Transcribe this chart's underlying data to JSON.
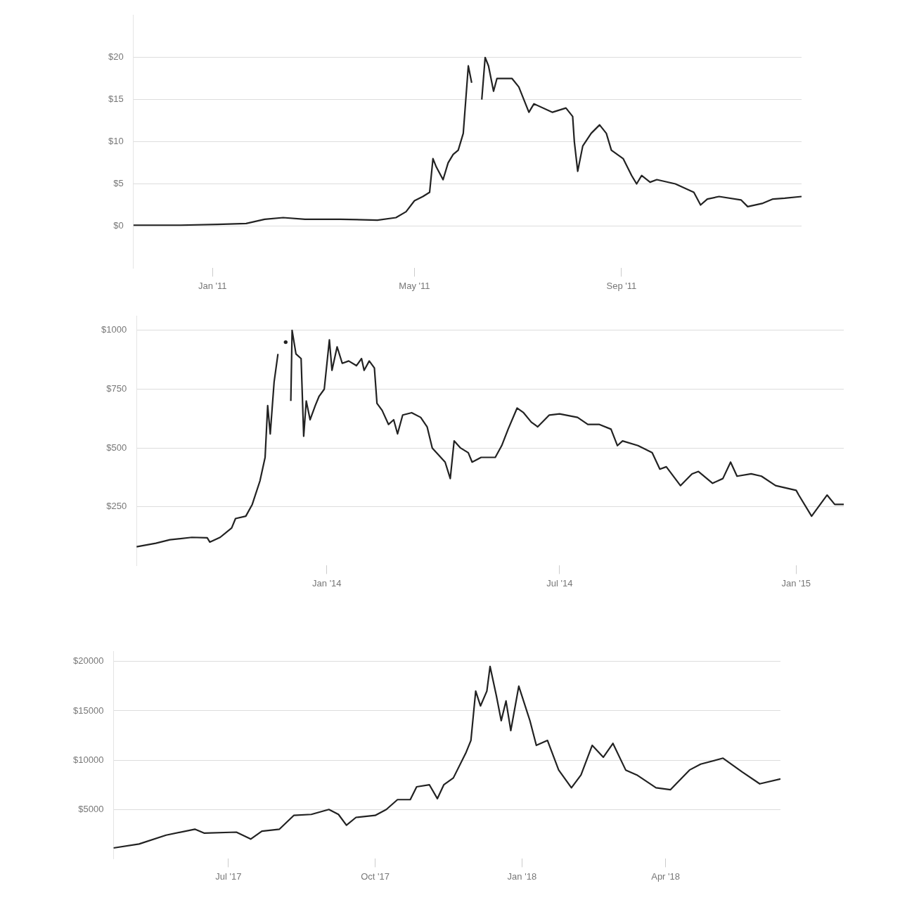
{
  "chart_data": [
    {
      "type": "line",
      "x": [
        "2010-11-15",
        "2010-12-13",
        "2011-01-04",
        "2011-01-21",
        "2011-02-01",
        "2011-02-12",
        "2011-02-25",
        "2011-03-18",
        "2011-04-09",
        "2011-04-20",
        "2011-04-26",
        "2011-05-01",
        "2011-05-06",
        "2011-05-10",
        "2011-05-12",
        "2011-05-14",
        "2011-05-18",
        "2011-05-21",
        "2011-05-24",
        "2011-05-27",
        "2011-05-30",
        "2011-06-02",
        "2011-06-04",
        "2011-06-06",
        "2011-06-08",
        "2011-06-10",
        "2011-06-12",
        "2011-06-14",
        "2011-06-17",
        "2011-06-19",
        "2011-06-28",
        "2011-07-02",
        "2011-07-05",
        "2011-07-08",
        "2011-07-11",
        "2011-07-22",
        "2011-07-30",
        "2011-08-03",
        "2011-08-04",
        "2011-08-06",
        "2011-08-09",
        "2011-08-14",
        "2011-08-19",
        "2011-08-23",
        "2011-08-26",
        "2011-09-02",
        "2011-09-07",
        "2011-09-10",
        "2011-09-13",
        "2011-09-18",
        "2011-09-22",
        "2011-10-03",
        "2011-10-14",
        "2011-10-18",
        "2011-10-22",
        "2011-10-29",
        "2011-11-11",
        "2011-11-15",
        "2011-11-24",
        "2011-11-30",
        "2011-12-07",
        "2011-12-17"
      ],
      "series": [
        {
          "color": "#222222",
          "values": [
            0.1,
            0.1,
            0.2,
            0.3,
            0.8,
            1.0,
            0.8,
            0.8,
            0.7,
            1.0,
            1.7,
            3.0,
            3.5,
            4.0,
            8.0,
            7.0,
            5.5,
            7.5,
            8.5,
            9.0,
            11,
            19,
            17,
            null,
            null,
            15,
            20,
            19,
            16,
            17.5,
            17.5,
            16.5,
            15,
            13.5,
            14.5,
            13.5,
            14,
            13,
            10,
            6.5,
            9.5,
            11,
            12,
            11,
            9,
            8,
            6,
            5,
            6,
            5.2,
            5.5,
            5,
            4,
            2.5,
            3.2,
            3.5,
            3.1,
            2.3,
            2.7,
            3.2,
            3.3,
            3.5
          ]
        }
      ],
      "xlim": [
        "2010-11-15",
        "2011-12-17"
      ],
      "ylim": [
        -5,
        25
      ],
      "xticks": [
        {
          "value": "2011-01-01",
          "label": "Jan '11"
        },
        {
          "value": "2011-05-01",
          "label": "May '11"
        },
        {
          "value": "2011-09-01",
          "label": "Sep '11"
        }
      ],
      "yticks": [
        {
          "value": 0,
          "label": "$0"
        },
        {
          "value": 5,
          "label": "$5"
        },
        {
          "value": 10,
          "label": "$10"
        },
        {
          "value": 15,
          "label": "$15"
        },
        {
          "value": 20,
          "label": "$20"
        }
      ],
      "grid": "y",
      "legend": false,
      "marker": "none",
      "line_style": "solid"
    },
    {
      "type": "line",
      "x": [
        "2013-08-06",
        "2013-08-21",
        "2013-09-01",
        "2013-09-18",
        "2013-09-30",
        "2013-10-02",
        "2013-10-10",
        "2013-10-19",
        "2013-10-22",
        "2013-10-30",
        "2013-11-04",
        "2013-11-10",
        "2013-11-14",
        "2013-11-16",
        "2013-11-18",
        "2013-11-21",
        "2013-11-24",
        "2013-11-26",
        "2013-11-28",
        "2013-11-30",
        "2013-12-01",
        "2013-12-04",
        "2013-12-05",
        "2013-12-08",
        "2013-12-12",
        "2013-12-14",
        "2013-12-16",
        "2013-12-19",
        "2013-12-23",
        "2013-12-26",
        "2013-12-30",
        "2014-01-03",
        "2014-01-05",
        "2014-01-09",
        "2014-01-13",
        "2014-01-18",
        "2014-01-24",
        "2014-01-28",
        "2014-01-30",
        "2014-02-03",
        "2014-02-07",
        "2014-02-09",
        "2014-02-13",
        "2014-02-18",
        "2014-02-22",
        "2014-02-25",
        "2014-03-01",
        "2014-03-08",
        "2014-03-15",
        "2014-03-20",
        "2014-03-24",
        "2014-03-29",
        "2014-04-03",
        "2014-04-07",
        "2014-04-10",
        "2014-04-15",
        "2014-04-21",
        "2014-04-24",
        "2014-05-01",
        "2014-05-12",
        "2014-05-17",
        "2014-05-22",
        "2014-05-29",
        "2014-06-03",
        "2014-06-09",
        "2014-06-14",
        "2014-06-23",
        "2014-07-01",
        "2014-07-15",
        "2014-07-23",
        "2014-08-01",
        "2014-08-10",
        "2014-08-15",
        "2014-08-19",
        "2014-08-31",
        "2014-09-11",
        "2014-09-17",
        "2014-09-22",
        "2014-10-03",
        "2014-10-12",
        "2014-10-17",
        "2014-10-28",
        "2014-11-05",
        "2014-11-11",
        "2014-11-16",
        "2014-11-27",
        "2014-12-05",
        "2014-12-16",
        "2015-01-01",
        "2015-01-03",
        "2015-01-13",
        "2015-01-17",
        "2015-01-25",
        "2015-01-31",
        "2015-02-07"
      ],
      "series": [
        {
          "color": "#222222",
          "values": [
            80,
            95,
            110,
            120,
            118,
            100,
            120,
            160,
            200,
            210,
            260,
            360,
            460,
            680,
            560,
            780,
            900,
            null,
            null,
            950,
            null,
            700,
            1000,
            900,
            880,
            550,
            700,
            620,
            680,
            720,
            750,
            960,
            830,
            930,
            860,
            870,
            850,
            880,
            830,
            870,
            840,
            690,
            660,
            600,
            620,
            560,
            640,
            650,
            630,
            590,
            500,
            470,
            440,
            370,
            530,
            500,
            480,
            440,
            460,
            460,
            510,
            580,
            670,
            650,
            610,
            590,
            640,
            645,
            630,
            600,
            600,
            580,
            510,
            530,
            510,
            480,
            410,
            420,
            340,
            390,
            400,
            350,
            370,
            440,
            380,
            390,
            380,
            340,
            320,
            300,
            210,
            240,
            300,
            260,
            260
          ]
        }
      ],
      "xlim": [
        "2013-08-06",
        "2015-02-07"
      ],
      "ylim": [
        0,
        1060
      ],
      "xticks": [
        {
          "value": "2014-01-01",
          "label": "Jan '14"
        },
        {
          "value": "2014-07-01",
          "label": "Jul '14"
        },
        {
          "value": "2015-01-01",
          "label": "Jan '15"
        }
      ],
      "yticks": [
        {
          "value": 250,
          "label": "$250"
        },
        {
          "value": 500,
          "label": "$500"
        },
        {
          "value": 750,
          "label": "$750"
        },
        {
          "value": 1000,
          "label": "$1000"
        }
      ],
      "grid": "y",
      "legend": false,
      "marker": "none",
      "line_style": "solid"
    },
    {
      "type": "line",
      "x": [
        "2017-04-20",
        "2017-05-06",
        "2017-05-23",
        "2017-06-10",
        "2017-06-16",
        "2017-07-06",
        "2017-07-15",
        "2017-07-22",
        "2017-08-02",
        "2017-08-11",
        "2017-08-22",
        "2017-09-02",
        "2017-09-08",
        "2017-09-13",
        "2017-09-19",
        "2017-10-01",
        "2017-10-08",
        "2017-10-15",
        "2017-10-23",
        "2017-10-27",
        "2017-11-04",
        "2017-11-09",
        "2017-11-13",
        "2017-11-19",
        "2017-11-27",
        "2017-11-30",
        "2017-12-03",
        "2017-12-06",
        "2017-12-10",
        "2017-12-12",
        "2017-12-16",
        "2017-12-19",
        "2017-12-22",
        "2017-12-25",
        "2017-12-30",
        "2018-01-06",
        "2018-01-10",
        "2018-01-17",
        "2018-01-24",
        "2018-02-01",
        "2018-02-07",
        "2018-02-14",
        "2018-02-21",
        "2018-02-27",
        "2018-03-07",
        "2018-03-14",
        "2018-03-26",
        "2018-04-04",
        "2018-04-16",
        "2018-04-23",
        "2018-05-07",
        "2018-05-19",
        "2018-05-30",
        "2018-06-12"
      ],
      "series": [
        {
          "color": "#222222",
          "values": [
            1100,
            1500,
            2400,
            3000,
            2600,
            2700,
            2000,
            2800,
            3000,
            4400,
            4500,
            5000,
            4500,
            3400,
            4200,
            4400,
            5000,
            6000,
            6000,
            7300,
            7500,
            6100,
            7500,
            8200,
            10800,
            12000,
            17000,
            15500,
            17000,
            19500,
            16500,
            14000,
            16000,
            13000,
            17500,
            14000,
            11500,
            12000,
            9000,
            7200,
            8500,
            11500,
            10300,
            11700,
            9000,
            8500,
            7200,
            7000,
            9000,
            9600,
            10200,
            8800,
            7600,
            8100
          ]
        }
      ],
      "xlim": [
        "2017-04-20",
        "2018-06-12"
      ],
      "ylim": [
        0,
        21000
      ],
      "xticks": [
        {
          "value": "2017-07-01",
          "label": "Jul '17"
        },
        {
          "value": "2017-10-01",
          "label": "Oct '17"
        },
        {
          "value": "2018-01-01",
          "label": "Jan '18"
        },
        {
          "value": "2018-04-01",
          "label": "Apr '18"
        }
      ],
      "yticks": [
        {
          "value": 5000,
          "label": "$5000"
        },
        {
          "value": 10000,
          "label": "$10000"
        },
        {
          "value": 15000,
          "label": "$15000"
        },
        {
          "value": 20000,
          "label": "$20000"
        }
      ],
      "grid": "y",
      "legend": false,
      "marker": "none",
      "line_style": "solid"
    }
  ]
}
